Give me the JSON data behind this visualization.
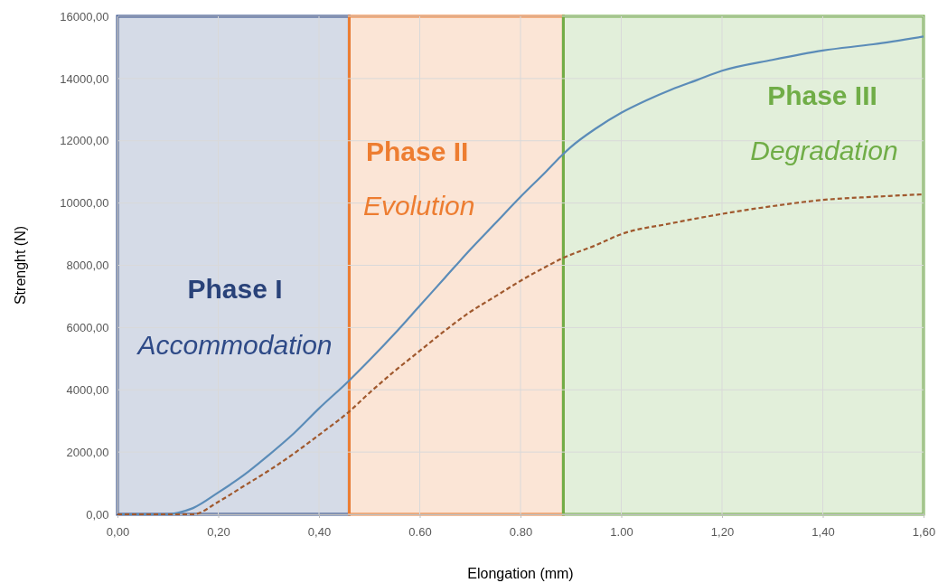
{
  "chart_data": {
    "type": "line",
    "xlabel": "Elongation (mm)",
    "ylabel": "Strenght (N)",
    "xlim": [
      0,
      1.6
    ],
    "ylim": [
      0,
      16000
    ],
    "xticks": [
      {
        "value": 0,
        "label": "0,00"
      },
      {
        "value": 0.2,
        "label": "0,20"
      },
      {
        "value": 0.4,
        "label": "0,40"
      },
      {
        "value": 0.6,
        "label": "0.60"
      },
      {
        "value": 0.8,
        "label": "0.80"
      },
      {
        "value": 1.0,
        "label": "1.00"
      },
      {
        "value": 1.2,
        "label": "1,20"
      },
      {
        "value": 1.4,
        "label": "1,40"
      },
      {
        "value": 1.6,
        "label": "1,60"
      }
    ],
    "yticks": [
      {
        "value": 0,
        "label": "0,00"
      },
      {
        "value": 2000,
        "label": "2000,00"
      },
      {
        "value": 4000,
        "label": "4000,00"
      },
      {
        "value": 6000,
        "label": "6000,00"
      },
      {
        "value": 8000,
        "label": "8000,00"
      },
      {
        "value": 10000,
        "label": "10000,00"
      },
      {
        "value": 12000,
        "label": "12000,00"
      },
      {
        "value": 14000,
        "label": "14000,00"
      },
      {
        "value": 16000,
        "label": "16000,00"
      }
    ],
    "grid": true,
    "x": [
      0,
      0.1,
      0.12,
      0.15,
      0.2,
      0.25,
      0.3,
      0.35,
      0.4,
      0.46,
      0.5,
      0.55,
      0.6,
      0.65,
      0.7,
      0.75,
      0.8,
      0.85,
      0.88,
      0.9,
      0.95,
      1.0,
      1.05,
      1.1,
      1.15,
      1.2,
      1.3,
      1.4,
      1.5,
      1.6
    ],
    "series": [
      {
        "color": "#5b8cb8",
        "line_style": "solid",
        "values": [
          0,
          0,
          50,
          200,
          700,
          1250,
          1900,
          2600,
          3400,
          4300,
          4950,
          5800,
          6700,
          7600,
          8500,
          9350,
          10200,
          11000,
          11500,
          11800,
          12400,
          12900,
          13300,
          13650,
          13950,
          14250,
          14600,
          14900,
          15100,
          15350
        ]
      },
      {
        "color": "#a0592e",
        "line_style": "dashed",
        "x": [
          0,
          0.15,
          0.2,
          0.25,
          0.3,
          0.35,
          0.4,
          0.46,
          0.5,
          0.55,
          0.6,
          0.65,
          0.7,
          0.75,
          0.8,
          0.85,
          0.88,
          0.95,
          1.0,
          1.1,
          1.2,
          1.3,
          1.4,
          1.5,
          1.6
        ],
        "values": [
          0,
          0,
          400,
          900,
          1400,
          1950,
          2550,
          3300,
          3900,
          4600,
          5250,
          5900,
          6500,
          7000,
          7500,
          7950,
          8200,
          8650,
          9000,
          9350,
          9650,
          9900,
          10100,
          10200,
          10280
        ]
      }
    ],
    "bands": [
      {
        "axis": "x",
        "from": 0,
        "to": 0.46,
        "label": "Phase I",
        "color": "#2e4a87"
      },
      {
        "axis": "x",
        "from": 0.46,
        "to": 0.885,
        "label": "Phase II",
        "color": "#ed7d31"
      },
      {
        "axis": "x",
        "from": 0.885,
        "to": 1.6,
        "label": "Phase III",
        "color": "#70ad47"
      }
    ],
    "annotations": [
      "Accommodation",
      "Evolution",
      "Degradation"
    ]
  }
}
